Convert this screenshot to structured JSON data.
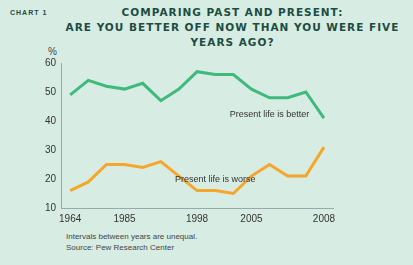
{
  "chart_data": {
    "type": "line",
    "chart_label": "CHART 1",
    "title": [
      "COMPARING PAST AND PRESENT:",
      "ARE YOU BETTER OFF NOW THAN YOU WERE FIVE YEARS AGO?"
    ],
    "ylabel": "%",
    "categories": [
      "1964",
      null,
      null,
      "1985",
      null,
      null,
      null,
      "1998",
      null,
      null,
      "2005",
      null,
      null,
      null,
      "2008"
    ],
    "series": [
      {
        "name": "Present life is better",
        "color": "#3fb97c",
        "values": [
          49,
          54,
          52,
          51,
          53,
          47,
          51,
          57,
          56,
          56,
          51,
          48,
          48,
          50,
          41
        ]
      },
      {
        "name": "Present life is worse",
        "color": "#f5a62b",
        "values": [
          16,
          19,
          25,
          25,
          24,
          26,
          21,
          16,
          16,
          15,
          21,
          25,
          21,
          21,
          31
        ]
      }
    ],
    "ylim": [
      10,
      60
    ],
    "yticks": [
      10,
      20,
      30,
      40,
      50,
      60
    ],
    "grid": false,
    "notes": [
      "Intervals between years are unequal.",
      "Source: Pew Research Center"
    ]
  }
}
